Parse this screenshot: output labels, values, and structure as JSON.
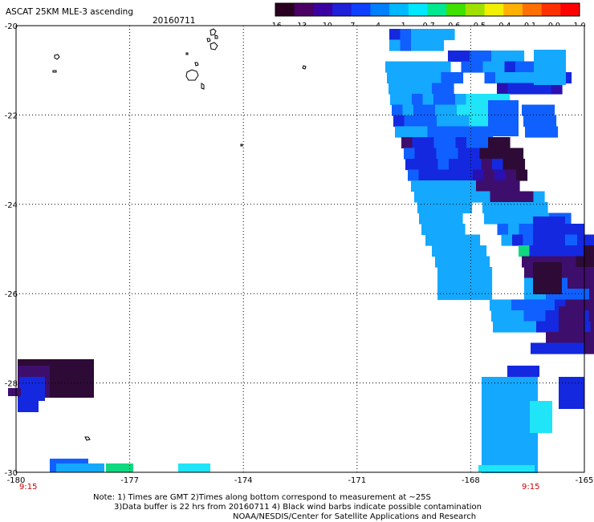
{
  "header": {
    "title": "ASCAT 25KM MLE-3 ascending",
    "date": "20160711"
  },
  "colorbar": {
    "tick_labels": [
      "-16",
      "-13",
      "-10",
      "-7",
      "-4",
      "-1",
      "-0.7",
      "-0.6",
      "-0.5",
      "-0.4",
      "-0.1",
      "0.0",
      "1.0"
    ],
    "colors": [
      "#2a0020",
      "#4b0064",
      "#3a00a0",
      "#2020d8",
      "#1040ff",
      "#0080ff",
      "#00b8ff",
      "#00e8ff",
      "#00e890",
      "#40e000",
      "#a0e000",
      "#f0f000",
      "#ffb000",
      "#ff7000",
      "#ff3000",
      "#ff0000"
    ]
  },
  "map": {
    "lon_range": [
      -180,
      -166
    ],
    "lat_range": [
      -30,
      -20
    ],
    "lon_ticks": [
      "-180",
      "-177",
      "-174",
      "-171",
      "-168",
      "-165"
    ],
    "lat_ticks": [
      "-20",
      "-22",
      "-24",
      "-26",
      "-28",
      "-30"
    ],
    "time_labels": [
      "9:15",
      "9:15"
    ],
    "mle_palette": {
      "d": "#2e0a36",
      "p": "#3e0e6c",
      "i": "#2a10b0",
      "b": "#1428e0",
      "m": "#1060ff",
      "l": "#14a8ff",
      "c": "#20e4f8",
      "g": "#10d880",
      "y": "#70e020"
    }
  },
  "notes": {
    "line1": "Note: 1) Times are GMT 2)Times along bottom correspond to measurement at ~25S",
    "line2": "3)Data buffer is 22 hrs from 20160711 4) Black wind barbs indicate possible contamination",
    "line3": "NOAA/NESDIS/Center for Satellite Applications and Research"
  }
}
